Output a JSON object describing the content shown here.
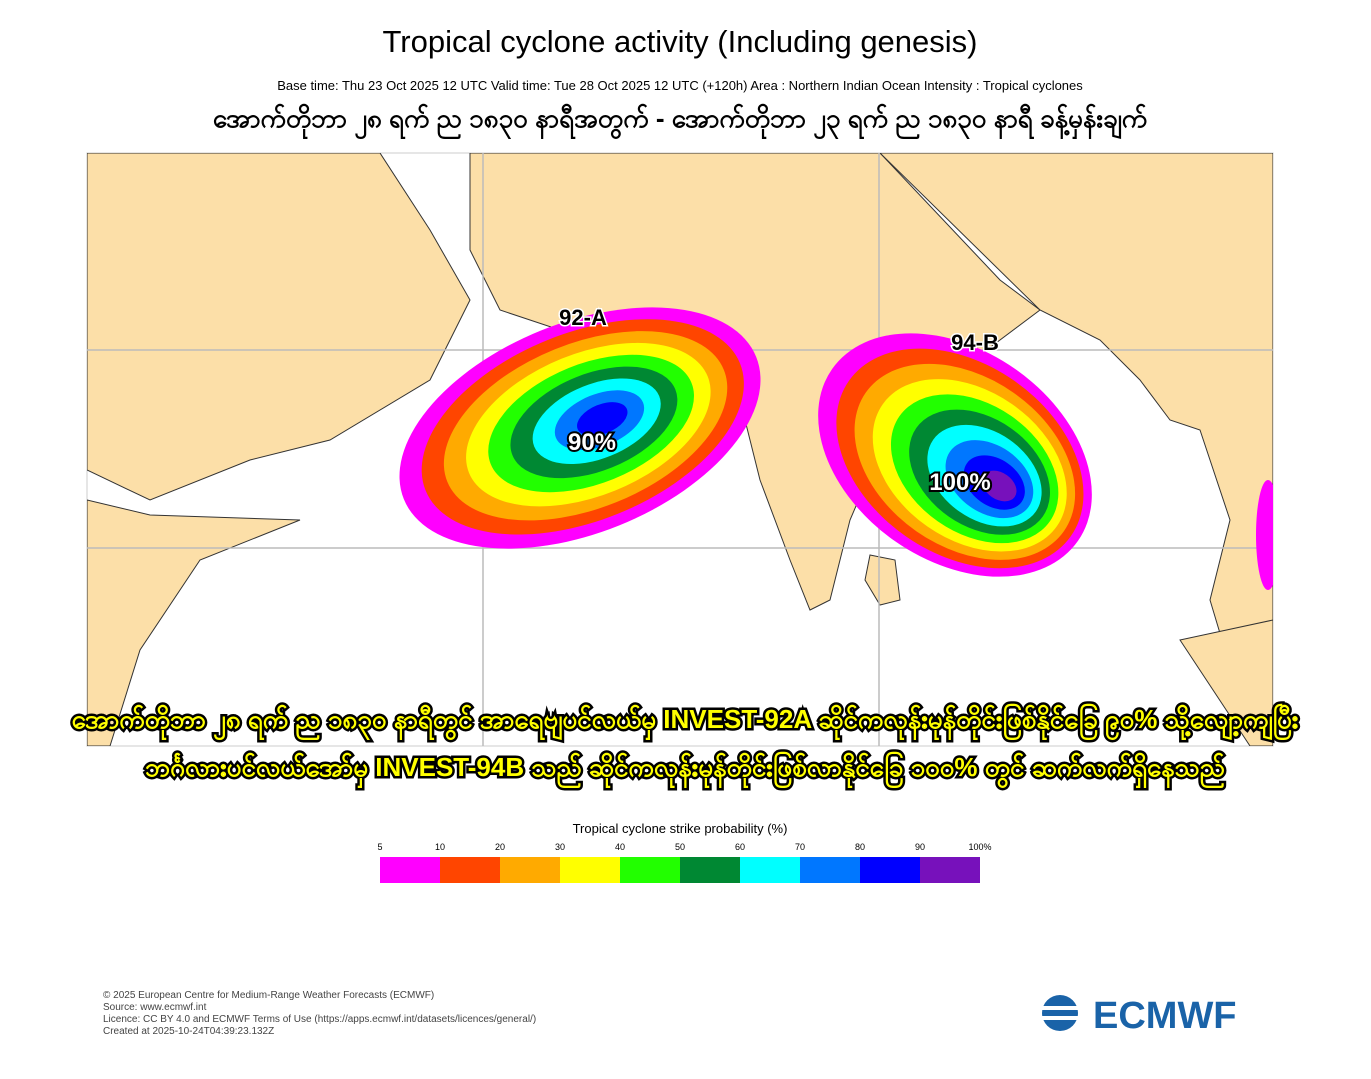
{
  "header": {
    "title": "Tropical cyclone activity (Including genesis)",
    "subtitle": "Base time: Thu 23 Oct 2025 12 UTC Valid time: Tue 28 Oct 2025 12 UTC (+120h) Area : Northern Indian Ocean Intensity : Tropical cyclones",
    "local_title": "အောက်တိုဘာ ၂၈ ရက် ည ၁၈၃၀ နာရီအတွက် - အောက်တိုဘာ ၂၃ ရက် ည ၁၈၃၀ နာရီ ခန့်မှန်းချက်"
  },
  "map": {
    "systems": [
      {
        "name": "92-A",
        "probability": "90%"
      },
      {
        "name": "94-B",
        "probability": "100%"
      }
    ],
    "caption": [
      "အောက်တိုဘာ ၂၈ ရက် ည ၁၈၃၀ နာရီတွင် အာရေဗျပင်လယ်မှ INVEST-92A ဆိုင်ကလုန်းမုန်တိုင်းဖြစ်နိုင်ခြေ ၉၀% သို့လျော့ကျပြီး",
      "ဘင်္ဂလားပင်လယ်အော်မှ INVEST-94B သည် ဆိုင်ကလုန်းမုန်တိုင်းဖြစ်လာနိုင်ခြေ ၁၀၀% တွင် ဆက်လက်ရှိနေသည်"
    ]
  },
  "colorbar": {
    "title": "Tropical cyclone strike probability (%)",
    "ticks": [
      5,
      10,
      20,
      30,
      40,
      50,
      60,
      70,
      80,
      90,
      {
        "value": 100,
        "label": "100%"
      }
    ],
    "colors": [
      "#ff00ff",
      "#ff4500",
      "#ffaa00",
      "#ffff00",
      "#22ff00",
      "#008833",
      "#00ffff",
      "#0077ff",
      "#0000ff",
      "#7711bb"
    ]
  },
  "footer": {
    "lines": [
      "© 2025 European Centre for Medium-Range Weather Forecasts (ECMWF)",
      "Source: www.ecmwf.int",
      "Licence: CC BY 4.0 and ECMWF Terms of Use (https://apps.ecmwf.int/datasets/licences/general/)",
      "Created at 2025-10-24T04:39:23.132Z"
    ],
    "logo": "ECMWF"
  }
}
